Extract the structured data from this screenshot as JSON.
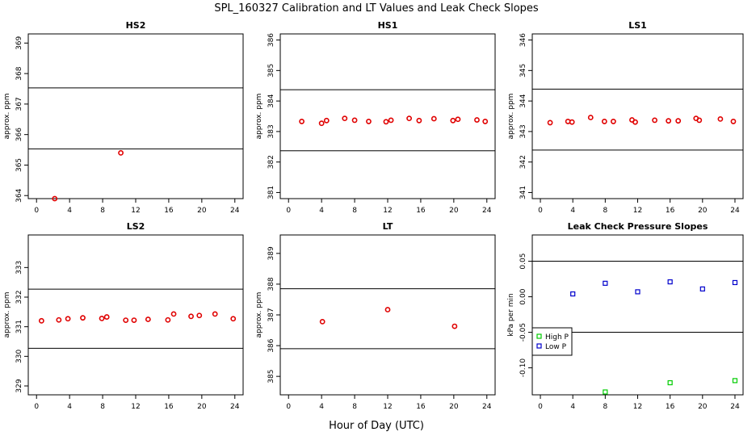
{
  "title": "SPL_160327  Calibration and LT Values and Leak Check Slopes",
  "xlabel": "Hour of Day (UTC)",
  "colors": {
    "calibration_points": "#e00000",
    "high_p": "#00cc00",
    "low_p": "#0000cc",
    "lines": "#000000"
  },
  "chart_data": [
    {
      "type": "scatter",
      "title": "HS2",
      "xlabel": "",
      "ylabel": "approx. ppm",
      "xlim": [
        -1,
        25
      ],
      "ylim": [
        363.9,
        369.3
      ],
      "xticks": [
        0,
        4,
        8,
        12,
        16,
        20,
        24
      ],
      "yticks": [
        364,
        365,
        366,
        367,
        368,
        369
      ],
      "ref_lines": [
        365.53,
        367.53
      ],
      "series": [
        {
          "color": "#e00000",
          "x": [
            2.2,
            10.2
          ],
          "y": [
            363.9,
            365.4
          ]
        }
      ]
    },
    {
      "type": "scatter",
      "title": "HS1",
      "xlabel": "",
      "ylabel": "approx. ppm",
      "xlim": [
        -1,
        25
      ],
      "ylim": [
        380.8,
        386.2
      ],
      "xticks": [
        0,
        4,
        8,
        12,
        16,
        20,
        24
      ],
      "yticks": [
        381,
        382,
        383,
        384,
        385,
        386
      ],
      "ref_lines": [
        382.37,
        384.37
      ],
      "series": [
        {
          "color": "#e00000",
          "x": [
            1.6,
            4.0,
            4.6,
            6.8,
            8.0,
            9.7,
            11.8,
            12.4,
            14.6,
            15.8,
            17.6,
            19.9,
            20.5,
            22.8,
            23.8
          ],
          "y": [
            383.33,
            383.27,
            383.36,
            383.43,
            383.37,
            383.33,
            383.32,
            383.37,
            383.43,
            383.36,
            383.42,
            383.36,
            383.4,
            383.38,
            383.33
          ]
        }
      ]
    },
    {
      "type": "scatter",
      "title": "LS1",
      "xlabel": "",
      "ylabel": "approx. ppm",
      "xlim": [
        -1,
        25
      ],
      "ylim": [
        340.8,
        346.2
      ],
      "xticks": [
        0,
        4,
        8,
        12,
        16,
        20,
        24
      ],
      "yticks": [
        341,
        342,
        343,
        344,
        345,
        346
      ],
      "ref_lines": [
        342.39,
        344.39
      ],
      "series": [
        {
          "color": "#e00000",
          "x": [
            1.2,
            3.4,
            3.9,
            6.2,
            7.9,
            9.0,
            11.3,
            11.7,
            14.1,
            15.8,
            17.0,
            19.2,
            19.6,
            22.2,
            23.8
          ],
          "y": [
            343.29,
            343.33,
            343.31,
            343.46,
            343.33,
            343.33,
            343.38,
            343.31,
            343.37,
            343.35,
            343.35,
            343.43,
            343.37,
            343.41,
            343.33
          ]
        }
      ]
    },
    {
      "type": "scatter",
      "title": "LS2",
      "xlabel": "",
      "ylabel": "approx. ppm",
      "xlim": [
        -1,
        25
      ],
      "ylim": [
        328.7,
        334.1
      ],
      "xticks": [
        0,
        4,
        8,
        12,
        16,
        20,
        24
      ],
      "yticks": [
        329,
        330,
        331,
        332,
        333
      ],
      "ref_lines": [
        330.27,
        332.27
      ],
      "series": [
        {
          "color": "#e00000",
          "x": [
            0.6,
            2.7,
            3.8,
            5.6,
            7.9,
            8.5,
            10.8,
            11.8,
            13.5,
            15.9,
            16.6,
            18.7,
            19.7,
            21.6,
            23.8
          ],
          "y": [
            331.2,
            331.23,
            331.27,
            331.3,
            331.28,
            331.33,
            331.22,
            331.22,
            331.25,
            331.23,
            331.43,
            331.35,
            331.38,
            331.43,
            331.27
          ]
        }
      ]
    },
    {
      "type": "scatter",
      "title": "LT",
      "xlabel": "",
      "ylabel": "approx. ppm",
      "xlim": [
        -1,
        25
      ],
      "ylim": [
        384.4,
        389.6
      ],
      "xticks": [
        0,
        4,
        8,
        12,
        16,
        20,
        24
      ],
      "yticks": [
        385,
        386,
        387,
        388,
        389
      ],
      "ref_lines": [
        385.9,
        387.85
      ],
      "series": [
        {
          "color": "#e00000",
          "x": [
            4.1,
            12.0,
            20.1
          ],
          "y": [
            386.78,
            387.17,
            386.63
          ]
        }
      ]
    },
    {
      "type": "scatter",
      "title": "Leak Check Pressure Slopes",
      "xlabel": "",
      "ylabel": "kPa per min",
      "xlim": [
        -1,
        25
      ],
      "ylim": [
        -0.138,
        0.087
      ],
      "xticks": [
        0,
        4,
        8,
        12,
        16,
        20,
        24
      ],
      "yticks": [
        -0.1,
        -0.05,
        0.0,
        0.05
      ],
      "ytick_labels": [
        "-0.10",
        "-0.05",
        "0.00",
        "0.05"
      ],
      "ref_lines": [
        -0.05,
        0.05
      ],
      "legend": {
        "position": "left",
        "entries": [
          "High P",
          "Low P"
        ]
      },
      "series": [
        {
          "name": "High P",
          "color": "#00cc00",
          "x": [
            8.0,
            16.0,
            24.0
          ],
          "y": [
            -0.134,
            -0.121,
            -0.118
          ]
        },
        {
          "name": "Low P",
          "color": "#0000cc",
          "x": [
            4.0,
            8.0,
            12.0,
            16.0,
            20.0,
            24.0
          ],
          "y": [
            0.004,
            0.019,
            0.007,
            0.021,
            0.011,
            0.02
          ]
        }
      ]
    }
  ]
}
